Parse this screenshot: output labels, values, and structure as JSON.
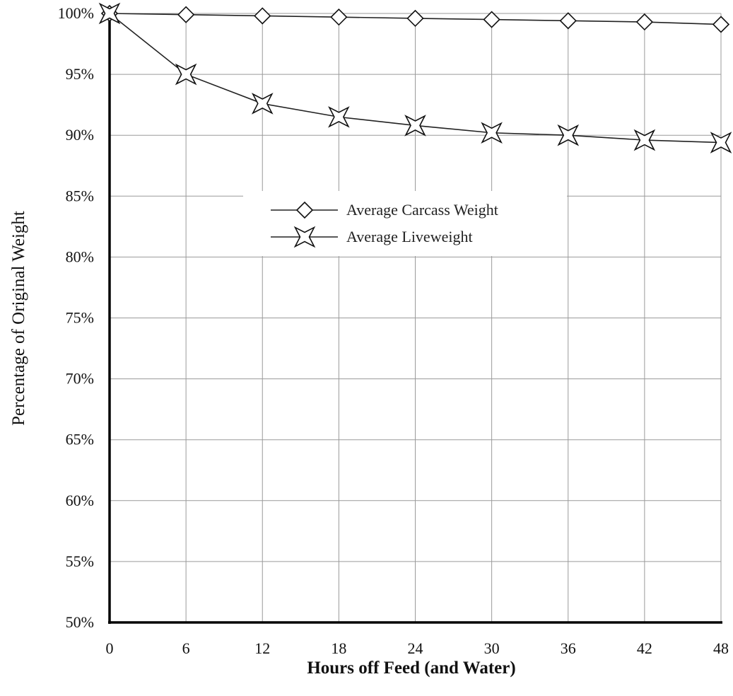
{
  "chart_data": {
    "type": "line",
    "xlabel": "Hours off Feed (and Water)",
    "ylabel": "Percentage of Original Weight",
    "x": [
      0,
      6,
      12,
      18,
      24,
      30,
      36,
      42,
      48
    ],
    "xlim": [
      0,
      48
    ],
    "ylim": [
      50,
      100
    ],
    "x_ticks": [
      "0",
      "6",
      "12",
      "18",
      "24",
      "30",
      "36",
      "42",
      "48"
    ],
    "y_ticks": [
      "50%",
      "55%",
      "60%",
      "65%",
      "70%",
      "75%",
      "80%",
      "85%",
      "90%",
      "95%",
      "100%"
    ],
    "grid": true,
    "legend_position": "center-right-upper",
    "series": [
      {
        "name": "Average Carcass Weight",
        "marker": "diamond",
        "values": [
          100,
          99.9,
          99.8,
          99.7,
          99.6,
          99.5,
          99.4,
          99.3,
          99.1
        ]
      },
      {
        "name": "Average Liveweight",
        "marker": "star",
        "values": [
          100,
          95.0,
          92.6,
          91.5,
          90.8,
          90.2,
          90.0,
          89.6,
          89.4
        ]
      }
    ]
  }
}
